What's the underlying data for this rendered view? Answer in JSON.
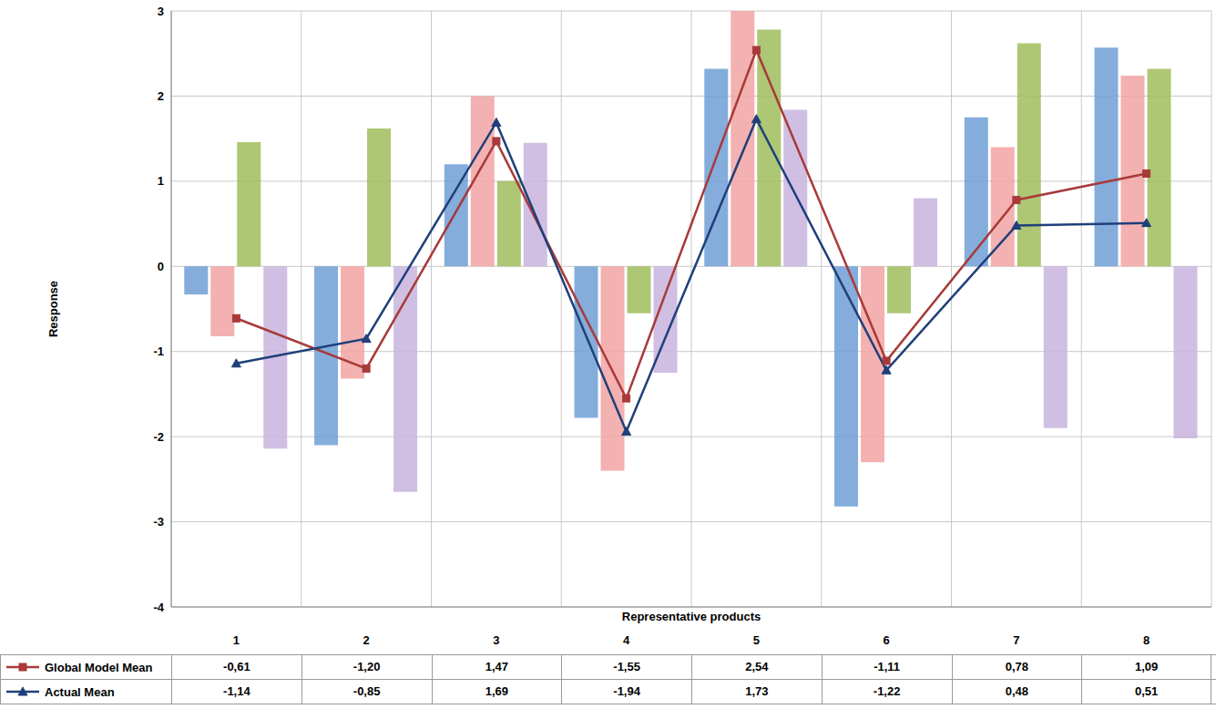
{
  "chart_data": {
    "type": "bar",
    "xlabel": "Representative products",
    "ylabel": "Response",
    "categories": [
      "1",
      "2",
      "3",
      "4",
      "5",
      "6",
      "7",
      "8"
    ],
    "ylim": [
      -4,
      3
    ],
    "yticks": [
      -4,
      -3,
      -2,
      -1,
      0,
      1,
      2,
      3
    ],
    "grid": true,
    "series": [
      {
        "type": "bar",
        "color": "#6f9fd6",
        "values": [
          -0.33,
          -2.1,
          1.2,
          -1.78,
          2.32,
          -2.82,
          1.75,
          2.57
        ]
      },
      {
        "type": "bar",
        "color": "#f2a3a3",
        "values": [
          -0.82,
          -1.32,
          2.0,
          -2.4,
          3.0,
          -2.3,
          1.4,
          2.24
        ]
      },
      {
        "type": "bar",
        "color": "#9fbd5c",
        "values": [
          1.46,
          1.62,
          1.0,
          -0.55,
          2.78,
          -0.55,
          2.62,
          2.32
        ]
      },
      {
        "type": "bar",
        "color": "#c8b4de",
        "values": [
          -2.14,
          -2.65,
          1.45,
          -1.25,
          1.84,
          0.8,
          -1.9,
          -2.02
        ]
      },
      {
        "type": "line",
        "name": "Global Model Mean",
        "color": "#a83a3a",
        "marker": "square",
        "values": [
          -0.61,
          -1.2,
          1.47,
          -1.55,
          2.54,
          -1.11,
          0.78,
          1.09
        ],
        "value_labels": [
          "-0,61",
          "-1,20",
          "1,47",
          "-1,55",
          "2,54",
          "-1,11",
          "0,78",
          "1,09"
        ]
      },
      {
        "type": "line",
        "name": "Actual Mean",
        "color": "#1f3f7a",
        "marker": "triangle",
        "values": [
          -1.14,
          -0.85,
          1.69,
          -1.94,
          1.73,
          -1.22,
          0.48,
          0.51
        ],
        "value_labels": [
          "-1,14",
          "-0,85",
          "1,69",
          "-1,94",
          "1,73",
          "-1,22",
          "0,48",
          "0,51"
        ]
      }
    ]
  }
}
